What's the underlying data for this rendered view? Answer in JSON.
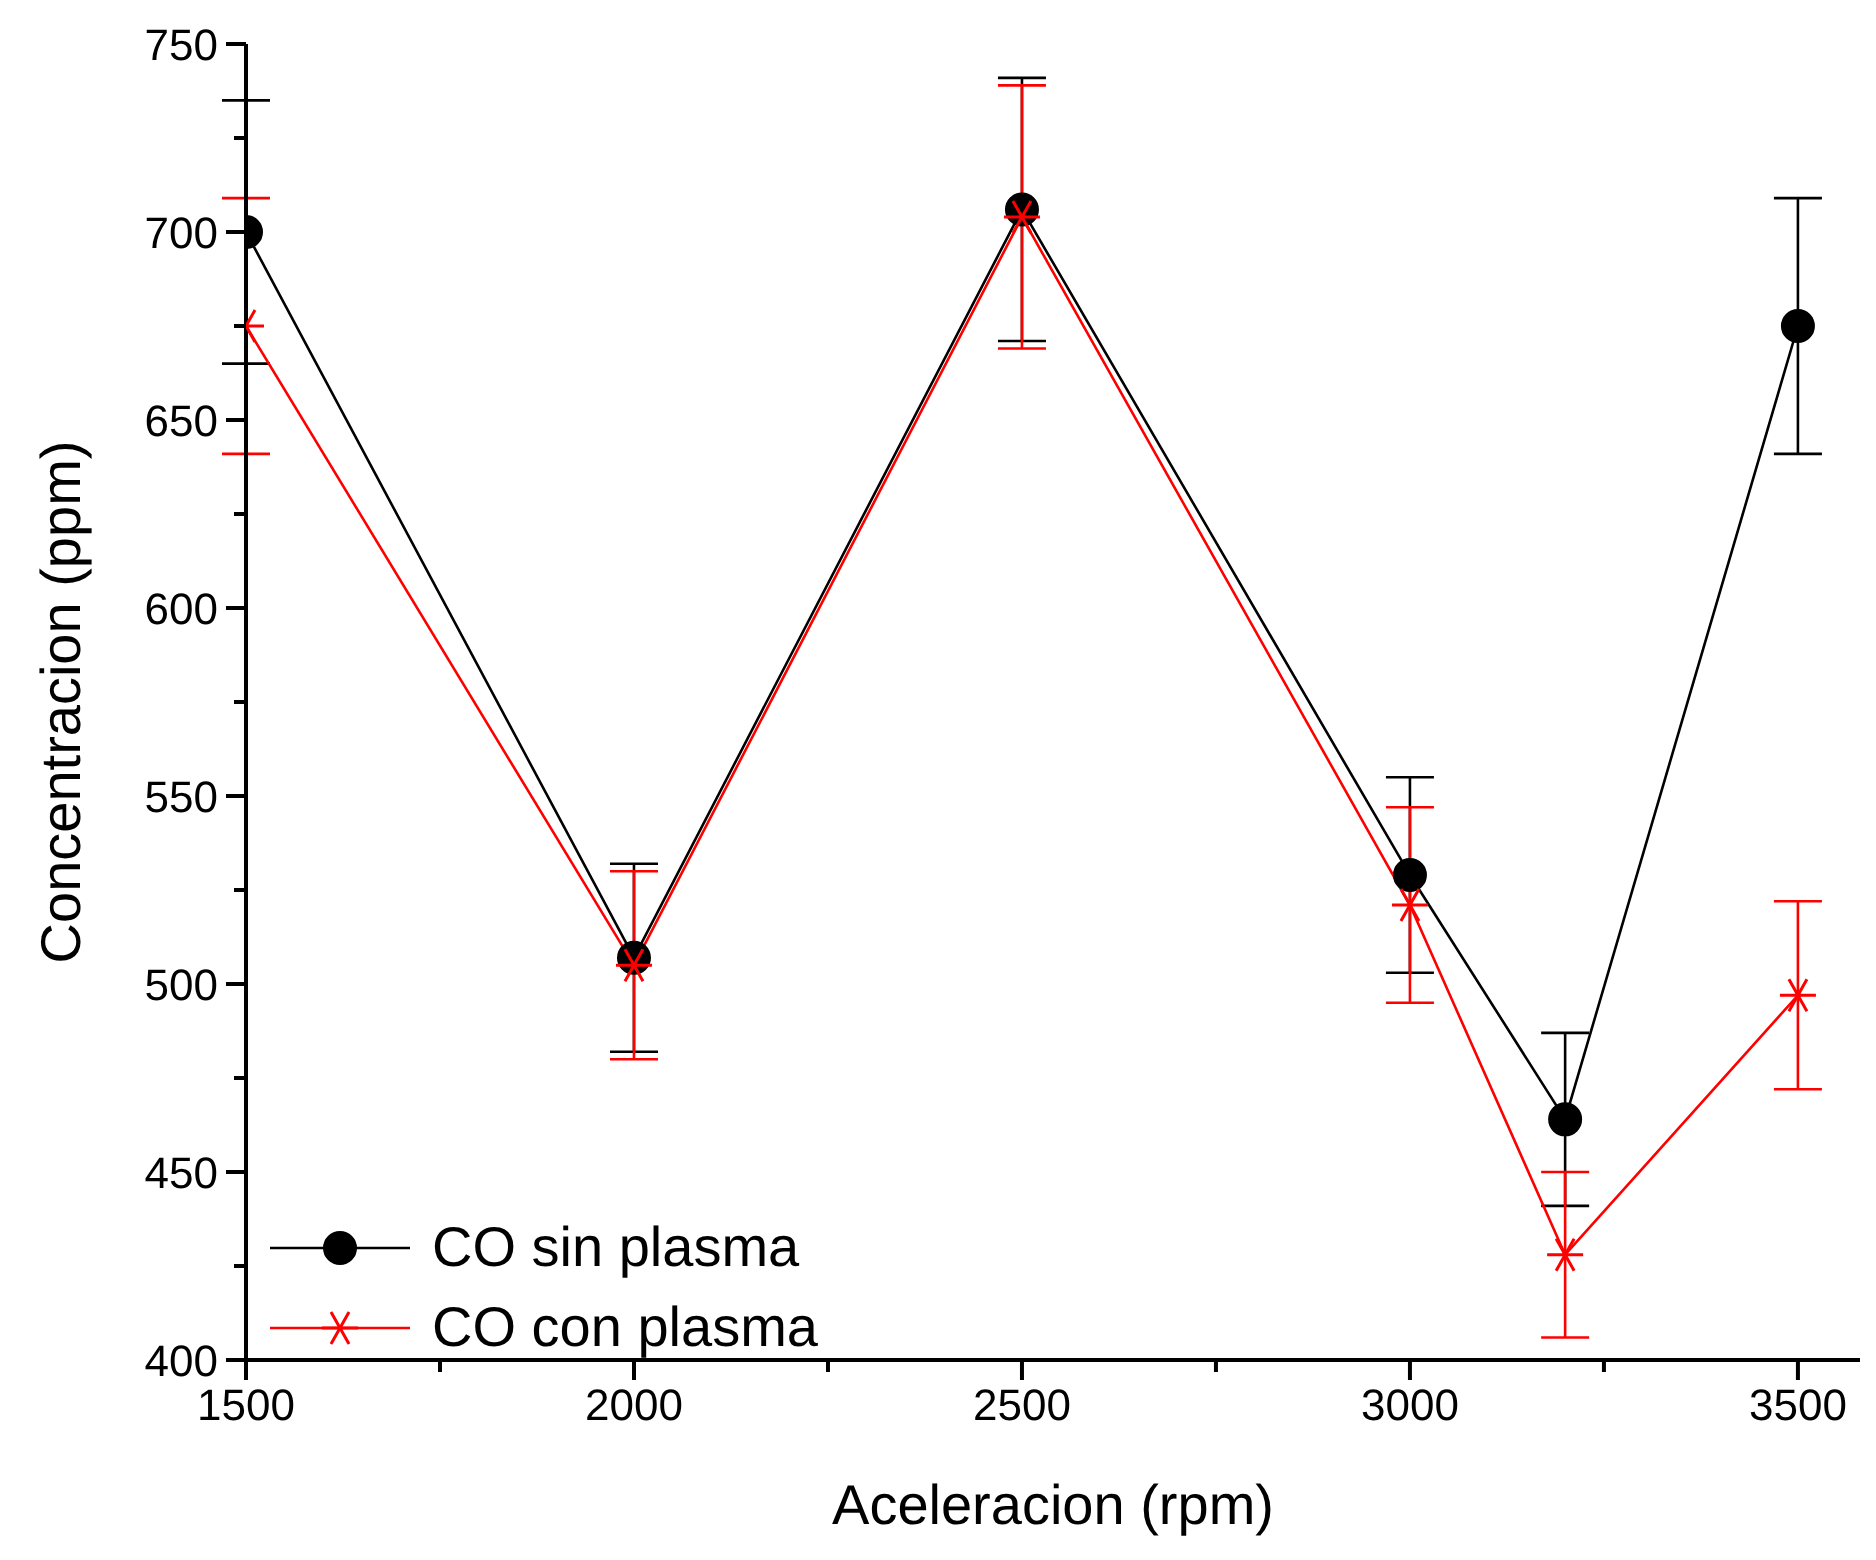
{
  "chart_data": {
    "type": "line",
    "xlabel": "Aceleracion (rpm)",
    "ylabel": "Concentracion (ppm)",
    "x": [
      1500,
      2000,
      2500,
      3000,
      3200,
      3500
    ],
    "xlim": [
      1500,
      3580
    ],
    "xticks": [
      1500,
      {
        "value": 1750,
        "label": null
      },
      2000,
      {
        "value": 2250,
        "label": null
      },
      2500,
      {
        "value": 2750,
        "label": null
      },
      3000,
      {
        "value": 3250,
        "label": null
      },
      3500
    ],
    "ylim": [
      400,
      750
    ],
    "yticks": [
      400,
      {
        "value": 425,
        "label": null
      },
      450,
      {
        "value": 475,
        "label": null
      },
      500,
      {
        "value": 525,
        "label": null
      },
      550,
      {
        "value": 575,
        "label": null
      },
      600,
      {
        "value": 625,
        "label": null
      },
      650,
      {
        "value": 675,
        "label": null
      },
      700,
      {
        "value": 725,
        "label": null
      },
      750
    ],
    "series": [
      {
        "name": "CO sin plasma",
        "color": "#000000",
        "marker": "circle",
        "values": [
          700,
          507,
          706,
          529,
          464,
          675
        ],
        "errors": [
          35,
          25,
          35,
          26,
          23,
          34
        ]
      },
      {
        "name": "CO con plasma",
        "color": "#ff0000",
        "marker": "cross",
        "values": [
          675,
          505,
          704,
          521,
          428,
          497
        ],
        "errors": [
          34,
          25,
          35,
          26,
          22,
          25
        ]
      }
    ],
    "legend": "bottom left",
    "grid": false,
    "line_style": "solid"
  }
}
